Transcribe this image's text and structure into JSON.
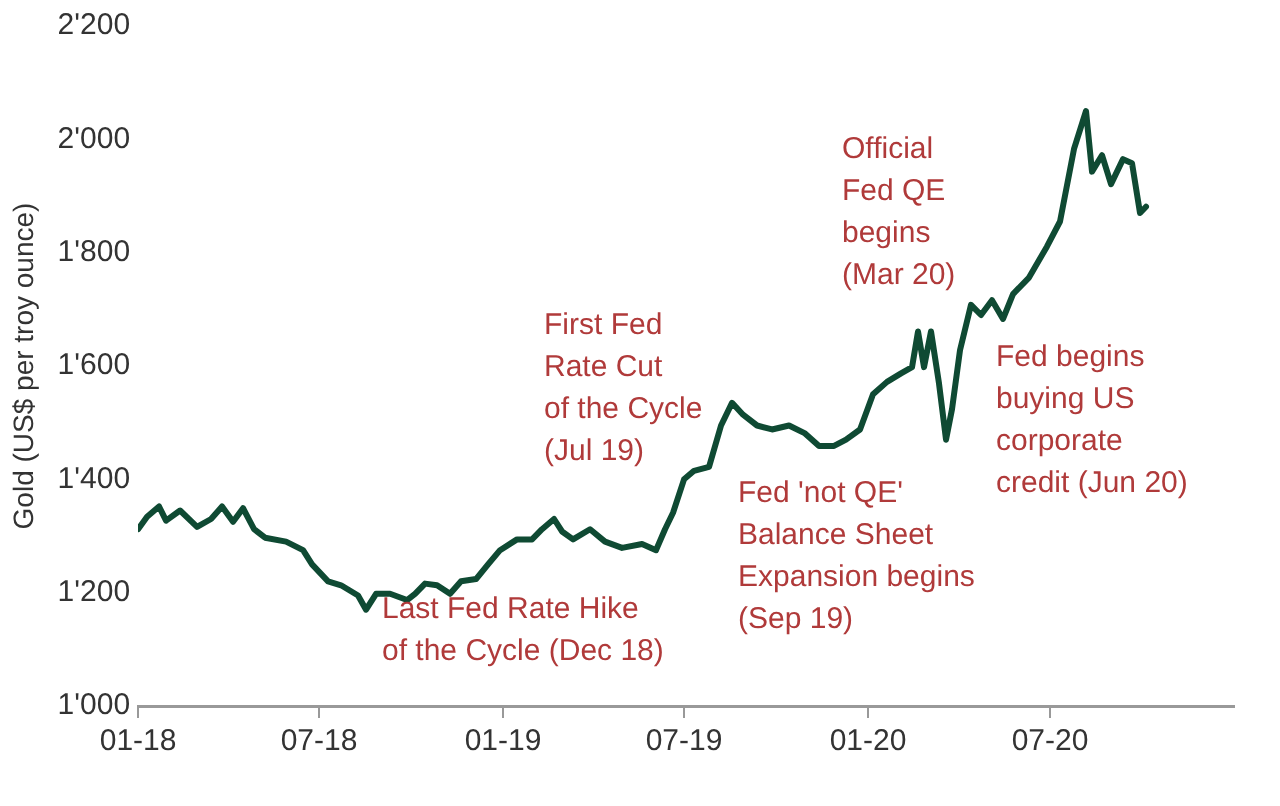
{
  "chart_data": {
    "type": "line",
    "ylabel": "Gold (US$ per troy ounce)",
    "x": [
      "2018-01-01",
      "2018-01-10",
      "2018-01-22",
      "2018-01-29",
      "2018-02-12",
      "2018-03-01",
      "2018-03-15",
      "2018-03-26",
      "2018-04-06",
      "2018-04-16",
      "2018-04-27",
      "2018-05-08",
      "2018-05-29",
      "2018-06-15",
      "2018-06-24",
      "2018-07-10",
      "2018-07-23",
      "2018-08-09",
      "2018-08-17",
      "2018-08-27",
      "2018-09-10",
      "2018-09-27",
      "2018-10-05",
      "2018-10-15",
      "2018-10-27",
      "2018-11-09",
      "2018-11-20",
      "2018-12-05",
      "2018-12-17",
      "2018-12-29",
      "2019-01-15",
      "2019-01-30",
      "2019-02-09",
      "2019-02-21",
      "2019-03-01",
      "2019-03-12",
      "2019-03-29",
      "2019-04-13",
      "2019-04-30",
      "2019-05-20",
      "2019-06-03",
      "2019-06-12",
      "2019-06-20",
      "2019-07-01",
      "2019-07-11",
      "2019-07-26",
      "2019-08-07",
      "2019-08-18",
      "2019-08-29",
      "2019-09-12",
      "2019-09-27",
      "2019-10-14",
      "2019-10-30",
      "2019-11-13",
      "2019-11-28",
      "2019-12-10",
      "2019-12-24",
      "2020-01-06",
      "2020-01-20",
      "2020-02-03",
      "2020-02-14",
      "2020-02-20",
      "2020-02-26",
      "2020-03-04",
      "2020-03-12",
      "2020-03-19",
      "2020-03-25",
      "2020-04-02",
      "2020-04-13",
      "2020-04-23",
      "2020-05-04",
      "2020-05-15",
      "2020-05-25",
      "2020-06-10",
      "2020-06-28",
      "2020-07-11",
      "2020-07-25",
      "2020-08-06",
      "2020-08-12",
      "2020-08-22",
      "2020-08-31",
      "2020-09-12",
      "2020-09-21",
      "2020-09-29",
      "2020-10-05"
    ],
    "series": [
      {
        "color": "#0f4a33",
        "values": [
          1312,
          1334,
          1352,
          1327,
          1345,
          1316,
          1330,
          1352,
          1325,
          1349,
          1312,
          1297,
          1290,
          1275,
          1250,
          1220,
          1213,
          1195,
          1170,
          1198,
          1198,
          1187,
          1198,
          1216,
          1213,
          1198,
          1220,
          1224,
          1250,
          1275,
          1294,
          1294,
          1312,
          1330,
          1308,
          1294,
          1312,
          1290,
          1279,
          1286,
          1275,
          1312,
          1341,
          1400,
          1415,
          1422,
          1495,
          1535,
          1514,
          1495,
          1488,
          1495,
          1481,
          1459,
          1459,
          1470,
          1488,
          1550,
          1572,
          1587,
          1598,
          1661,
          1598,
          1661,
          1569,
          1470,
          1524,
          1628,
          1708,
          1690,
          1716,
          1683,
          1727,
          1756,
          1811,
          1855,
          1983,
          2050,
          1943,
          1972,
          1921,
          1965,
          1958,
          1870,
          1881
        ]
      }
    ],
    "xlim": [
      "2018-01-01",
      "2021-01-01"
    ],
    "xticks": [
      {
        "value": "2018-01-01",
        "label": "01-18"
      },
      {
        "value": "2018-07-01",
        "label": "07-18"
      },
      {
        "value": "2019-01-01",
        "label": "01-19"
      },
      {
        "value": "2019-07-01",
        "label": "07-19"
      },
      {
        "value": "2020-01-01",
        "label": "01-20"
      },
      {
        "value": "2020-07-01",
        "label": "07-20"
      }
    ],
    "ylim": [
      1000,
      2200
    ],
    "yticks": [
      {
        "value": 1000,
        "label": "1'000"
      },
      {
        "value": 1200,
        "label": "1'200"
      },
      {
        "value": 1400,
        "label": "1'400"
      },
      {
        "value": 1600,
        "label": "1'600"
      },
      {
        "value": 1800,
        "label": "1'800"
      },
      {
        "value": 2000,
        "label": "2'000"
      },
      {
        "value": 2200,
        "label": "2'200"
      }
    ],
    "grid": false,
    "legend": false,
    "marker": "none",
    "line_style": "solid",
    "annotations": [
      "First Fed\nRate Cut\nof the Cycle\n(Jul 19)",
      "Last Fed Rate Hike\nof the Cycle (Dec 18)",
      "Fed 'not QE'\nBalance Sheet\nExpansion begins\n(Sep 19)",
      "Official\nFed QE\nbegins\n(Mar 20)",
      "Fed begins\nbuying US\ncorporate\ncredit (Jun 20)"
    ]
  }
}
